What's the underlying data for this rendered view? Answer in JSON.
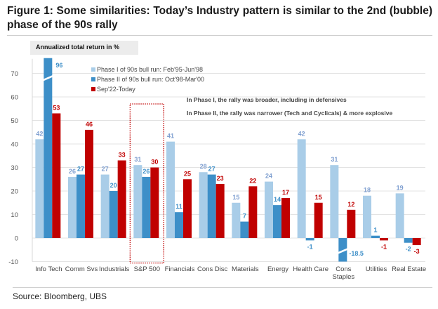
{
  "figure": {
    "title": "Figure 1: Some similarities: Today’s Industry pattern is similar to the 2nd (bubble) phase of the 90s rally",
    "source": "Source: Bloomberg, UBS"
  },
  "chart_data": {
    "type": "bar",
    "title": "Figure 1: Some similarities: Today’s Industry pattern is similar to the 2nd (bubble) phase of the 90s rally",
    "ylabel": "Annualized total return in %",
    "xlabel": "",
    "ylim": [
      -10,
      75
    ],
    "yticks": [
      70,
      60,
      50,
      40,
      30,
      20,
      10,
      0,
      -10
    ],
    "grid": true,
    "legend_position": "top-left",
    "categories": [
      "Info Tech",
      "Comm Svs",
      "Industrials",
      "S&P 500",
      "Financials",
      "Cons Disc",
      "Materials",
      "Energy",
      "Health Care",
      "Cons Staples",
      "Utilities",
      "Real Estate"
    ],
    "category_lines": [
      [
        "Info Tech"
      ],
      [
        "Comm Svs"
      ],
      [
        "Industrials"
      ],
      [
        "S&P 500"
      ],
      [
        "Financials"
      ],
      [
        "Cons Disc"
      ],
      [
        "Materials"
      ],
      [
        "Energy"
      ],
      [
        "Health Care"
      ],
      [
        "Cons",
        "Staples"
      ],
      [
        "Utilities"
      ],
      [
        "Real Estate"
      ]
    ],
    "series": [
      {
        "name": "Phase I of 90s bull run: Feb'95-Jun'98",
        "color": "#a9cde8",
        "label_color": "#7f9fd0",
        "values": [
          42,
          26,
          27,
          31,
          41,
          28,
          15,
          24,
          42,
          31,
          18,
          19
        ],
        "labels": [
          "42",
          "26",
          "27",
          "31",
          "41",
          "28",
          "15",
          "24",
          "42",
          "31",
          "18",
          "19"
        ]
      },
      {
        "name": "Phase II of 90s bull run: Oct'98-Mar'00",
        "color": "#3d8fc8",
        "label_color": "#3d8fc8",
        "values": [
          96,
          27,
          20,
          26,
          11,
          27,
          7,
          14,
          -1,
          -18.5,
          1,
          -2
        ],
        "labels": [
          "96",
          "27",
          "20",
          "26",
          "11",
          "27",
          "7",
          "14",
          "-1",
          "-18.5",
          "1",
          "-2"
        ],
        "broken_axis": {
          "Info Tech": true,
          "Cons Staples": true
        }
      },
      {
        "name": "Sep'22-Today",
        "color": "#c00000",
        "label_color": "#c00000",
        "values": [
          53,
          46,
          33,
          30,
          25,
          23,
          22,
          17,
          15,
          12,
          -1,
          -3
        ],
        "labels": [
          "53",
          "46",
          "33",
          "30",
          "25",
          "23",
          "22",
          "17",
          "15",
          "12",
          "-1",
          "-3"
        ]
      }
    ],
    "highlight_category": "S&P 500",
    "annotations": [
      "In Phase I, the rally was broader, including in defensives",
      "In Phase II, the rally was narrower (Tech and Cyclicals) & more explosive"
    ]
  }
}
